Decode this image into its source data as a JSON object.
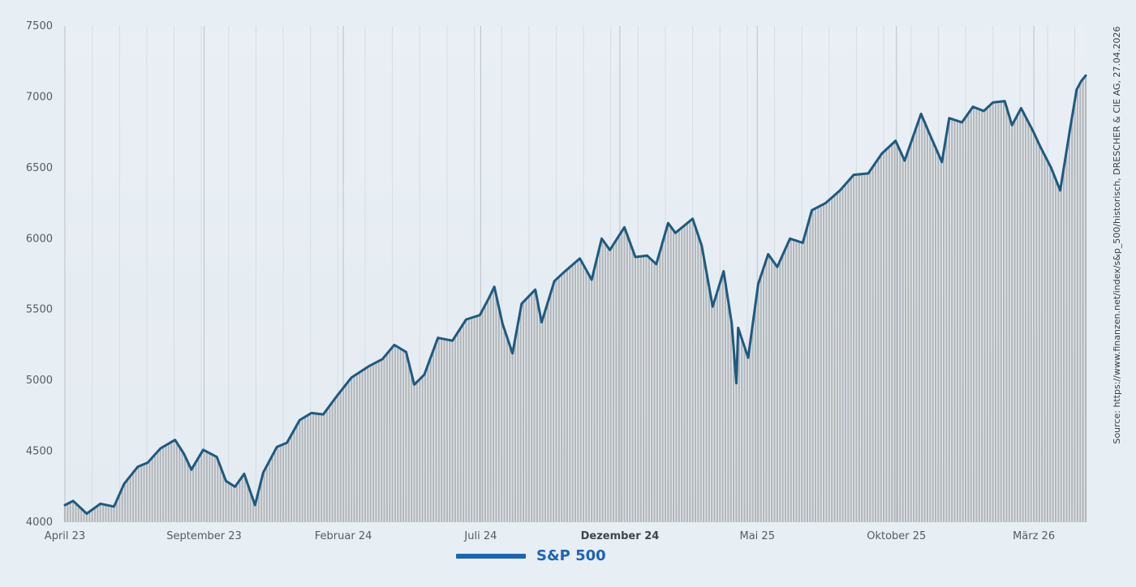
{
  "chart_data": {
    "type": "area",
    "title": "",
    "xlabel": "",
    "ylabel": "",
    "ylim": [
      4000,
      7500
    ],
    "y_ticks": [
      4000,
      4500,
      5000,
      5500,
      6000,
      6500,
      7000,
      7500
    ],
    "x_range": [
      "2023-04-01",
      "2026-04-27"
    ],
    "x_ticks": [
      {
        "date": "2023-04-01",
        "label": "April 23",
        "bold": false
      },
      {
        "date": "2023-09-01",
        "label": "September 23",
        "bold": false
      },
      {
        "date": "2024-02-01",
        "label": "Februar 24",
        "bold": false
      },
      {
        "date": "2024-07-01",
        "label": "Juli 24",
        "bold": false
      },
      {
        "date": "2024-12-01",
        "label": "Dezember 24",
        "bold": true
      },
      {
        "date": "2025-05-01",
        "label": "Mai 25",
        "bold": false
      },
      {
        "date": "2025-10-01",
        "label": "Oktober 25",
        "bold": false
      },
      {
        "date": "2026-03-01",
        "label": "März 26",
        "bold": false
      }
    ],
    "grid": true,
    "legend_position": "bottom-center",
    "series": [
      {
        "name": "S&P 500",
        "color": "#1e5a80",
        "legend_color": "#1e64b4",
        "fill_color": "#b3b7ba",
        "points": [
          [
            "2023-04-01",
            4120
          ],
          [
            "2023-04-10",
            4150
          ],
          [
            "2023-04-25",
            4060
          ],
          [
            "2023-05-10",
            4130
          ],
          [
            "2023-05-25",
            4110
          ],
          [
            "2023-06-05",
            4270
          ],
          [
            "2023-06-20",
            4390
          ],
          [
            "2023-07-01",
            4420
          ],
          [
            "2023-07-15",
            4520
          ],
          [
            "2023-07-31",
            4580
          ],
          [
            "2023-08-10",
            4480
          ],
          [
            "2023-08-18",
            4370
          ],
          [
            "2023-08-31",
            4510
          ],
          [
            "2023-09-15",
            4460
          ],
          [
            "2023-09-25",
            4290
          ],
          [
            "2023-10-05",
            4250
          ],
          [
            "2023-10-15",
            4340
          ],
          [
            "2023-10-27",
            4120
          ],
          [
            "2023-11-05",
            4350
          ],
          [
            "2023-11-20",
            4530
          ],
          [
            "2023-12-01",
            4560
          ],
          [
            "2023-12-15",
            4720
          ],
          [
            "2023-12-28",
            4770
          ],
          [
            "2024-01-10",
            4760
          ],
          [
            "2024-01-25",
            4890
          ],
          [
            "2024-02-10",
            5020
          ],
          [
            "2024-02-29",
            5100
          ],
          [
            "2024-03-15",
            5150
          ],
          [
            "2024-03-28",
            5250
          ],
          [
            "2024-04-10",
            5200
          ],
          [
            "2024-04-19",
            4970
          ],
          [
            "2024-04-30",
            5040
          ],
          [
            "2024-05-15",
            5300
          ],
          [
            "2024-05-31",
            5280
          ],
          [
            "2024-06-15",
            5430
          ],
          [
            "2024-06-30",
            5460
          ],
          [
            "2024-07-10",
            5580
          ],
          [
            "2024-07-16",
            5660
          ],
          [
            "2024-07-25",
            5400
          ],
          [
            "2024-08-05",
            5190
          ],
          [
            "2024-08-15",
            5540
          ],
          [
            "2024-08-30",
            5640
          ],
          [
            "2024-09-06",
            5410
          ],
          [
            "2024-09-20",
            5700
          ],
          [
            "2024-09-30",
            5760
          ],
          [
            "2024-10-18",
            5860
          ],
          [
            "2024-10-31",
            5710
          ],
          [
            "2024-11-11",
            6000
          ],
          [
            "2024-11-20",
            5920
          ],
          [
            "2024-12-06",
            6080
          ],
          [
            "2024-12-18",
            5870
          ],
          [
            "2024-12-31",
            5880
          ],
          [
            "2025-01-10",
            5820
          ],
          [
            "2025-01-23",
            6110
          ],
          [
            "2025-01-31",
            6040
          ],
          [
            "2025-02-19",
            6140
          ],
          [
            "2025-03-01",
            5950
          ],
          [
            "2025-03-13",
            5520
          ],
          [
            "2025-03-25",
            5770
          ],
          [
            "2025-04-03",
            5400
          ],
          [
            "2025-04-08",
            4980
          ],
          [
            "2025-04-10",
            5370
          ],
          [
            "2025-04-21",
            5160
          ],
          [
            "2025-05-02",
            5680
          ],
          [
            "2025-05-13",
            5890
          ],
          [
            "2025-05-23",
            5800
          ],
          [
            "2025-06-06",
            6000
          ],
          [
            "2025-06-20",
            5970
          ],
          [
            "2025-06-30",
            6200
          ],
          [
            "2025-07-15",
            6250
          ],
          [
            "2025-07-31",
            6340
          ],
          [
            "2025-08-15",
            6450
          ],
          [
            "2025-08-31",
            6460
          ],
          [
            "2025-09-15",
            6600
          ],
          [
            "2025-09-30",
            6690
          ],
          [
            "2025-10-10",
            6550
          ],
          [
            "2025-10-28",
            6880
          ],
          [
            "2025-11-05",
            6760
          ],
          [
            "2025-11-20",
            6540
          ],
          [
            "2025-11-28",
            6850
          ],
          [
            "2025-12-12",
            6820
          ],
          [
            "2025-12-24",
            6930
          ],
          [
            "2026-01-05",
            6900
          ],
          [
            "2026-01-15",
            6960
          ],
          [
            "2026-01-28",
            6970
          ],
          [
            "2026-02-05",
            6800
          ],
          [
            "2026-02-15",
            6920
          ],
          [
            "2026-02-28",
            6760
          ],
          [
            "2026-03-08",
            6650
          ],
          [
            "2026-03-20",
            6500
          ],
          [
            "2026-03-30",
            6340
          ],
          [
            "2026-04-05",
            6580
          ],
          [
            "2026-04-10",
            6780
          ],
          [
            "2026-04-17",
            7050
          ],
          [
            "2026-04-22",
            7110
          ],
          [
            "2026-04-27",
            7150
          ]
        ]
      }
    ],
    "source": "Source: https://www.finanzen.net/index/s&p_500/historisch, DRESCHER & CIE AG, 27.04.2026"
  }
}
